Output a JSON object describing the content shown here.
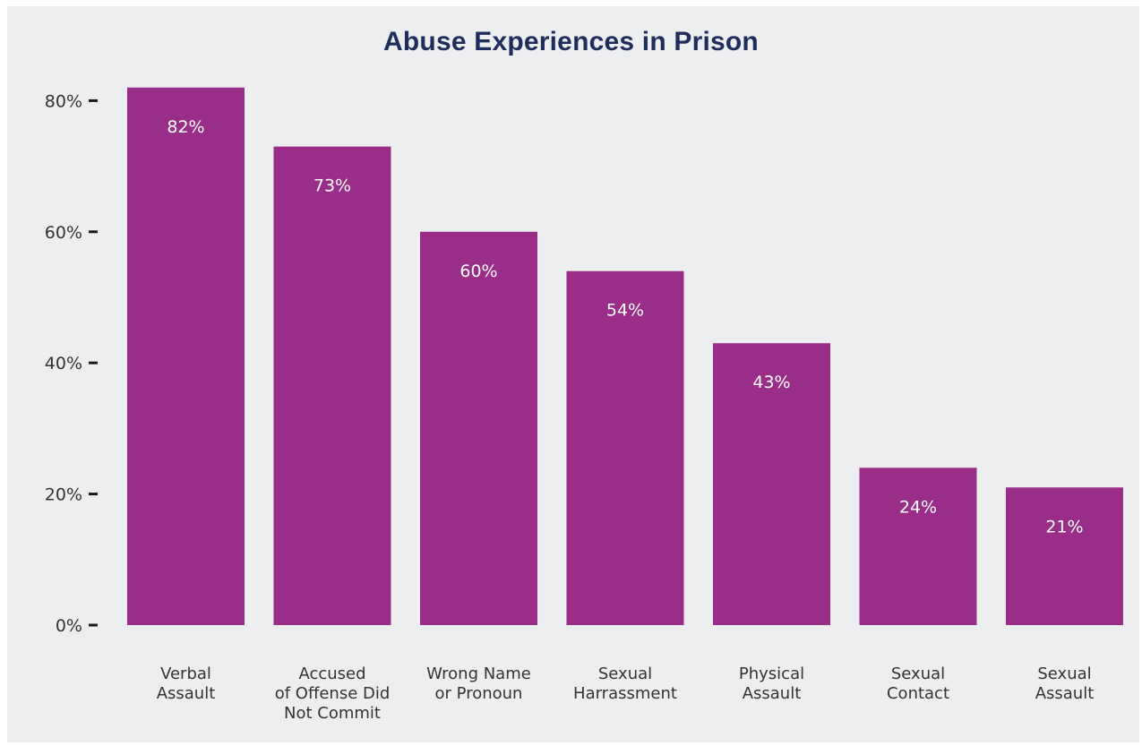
{
  "colors": {
    "title": "#1f2d5c",
    "bar": "#992d87",
    "panel": "#edeef0",
    "tick": "#1a1a1a"
  },
  "chart_data": {
    "type": "bar",
    "title": "Abuse Experiences in Prison",
    "xlabel": "",
    "ylabel": "",
    "ylim": [
      0,
      80
    ],
    "y_ticks": [
      0,
      20,
      40,
      60,
      80
    ],
    "y_tick_labels": [
      "0%",
      "20%",
      "40%",
      "60%",
      "80%"
    ],
    "categories": [
      [
        "Verbal",
        "Assault"
      ],
      [
        "Accused",
        "of Offense Did",
        "Not Commit"
      ],
      [
        "Wrong Name",
        "or Pronoun"
      ],
      [
        "Sexual",
        "Harrassment"
      ],
      [
        "Physical",
        "Assault"
      ],
      [
        "Sexual",
        "Contact"
      ],
      [
        "Sexual",
        "Assault"
      ]
    ],
    "values": [
      82,
      73,
      60,
      54,
      43,
      24,
      21
    ],
    "data_labels": [
      "82%",
      "73%",
      "60%",
      "54%",
      "43%",
      "24%",
      "21%"
    ],
    "grid": false,
    "legend": "none"
  }
}
